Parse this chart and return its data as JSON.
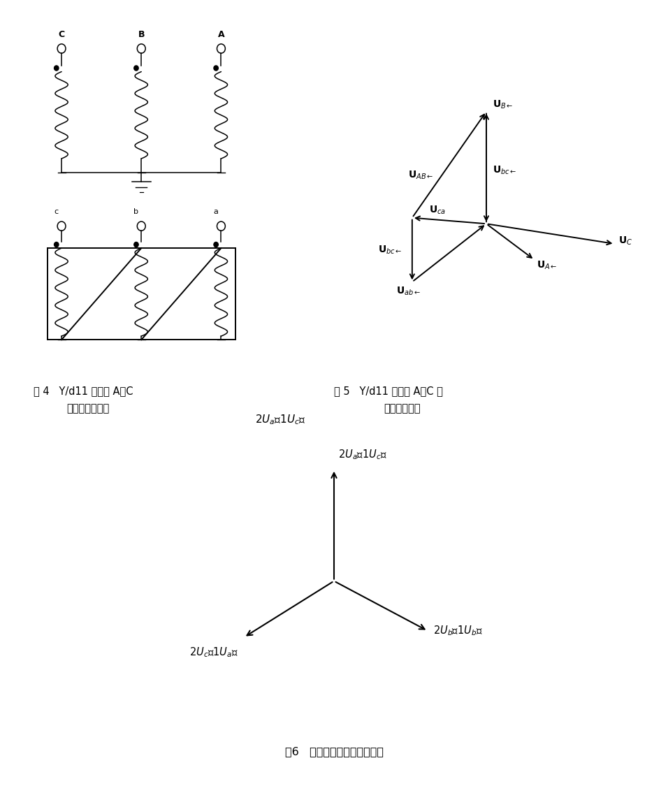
{
  "bg_color": "#ffffff",
  "fig_width": 9.56,
  "fig_height": 11.55,
  "fig4_cap1": "图 4   Y/d11 高压侧 A、C",
  "fig4_cap2": "相接反时接线图",
  "fig5_cap1": "图 5   Y/d11 高压侧 A、C 相",
  "fig5_cap2": "接反时相量图",
  "fig6_cap": "图6   变压器低压测电压相量图",
  "fig6_top": "2Uₐ（1Uₑ）",
  "fig6_right": "2Uₖ（1Uₖ）",
  "fig6_left": "2Uₑ（1Uₐ）"
}
